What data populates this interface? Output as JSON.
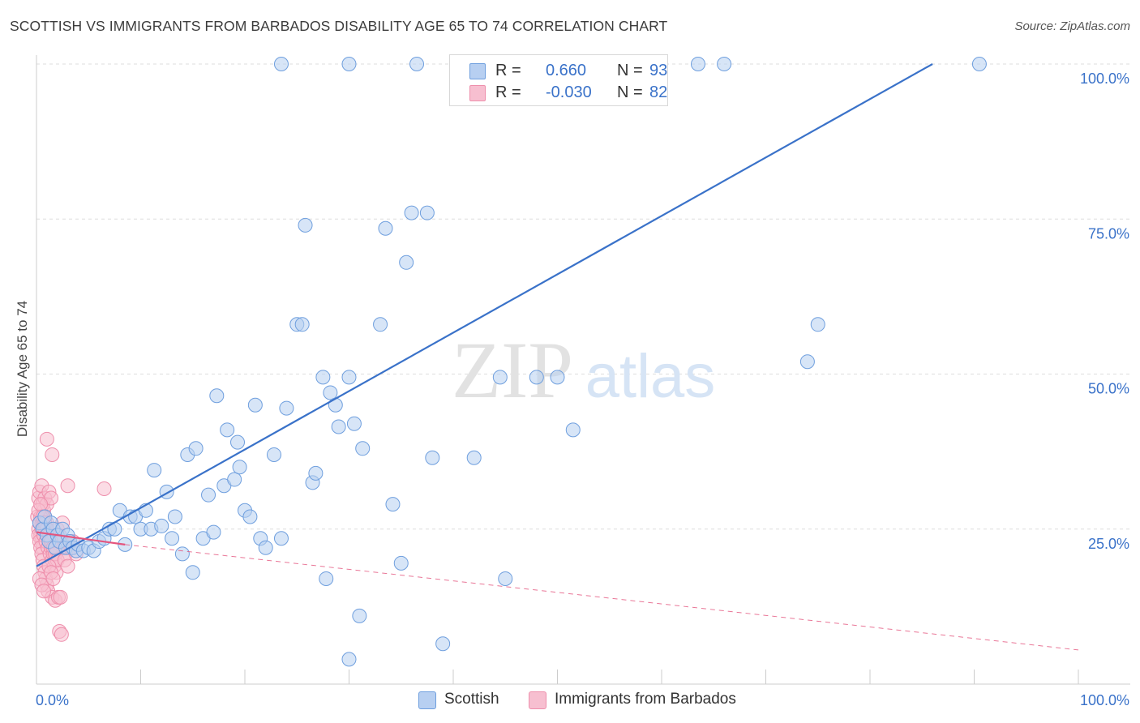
{
  "header": {
    "title": "SCOTTISH VS IMMIGRANTS FROM BARBADOS DISABILITY AGE 65 TO 74 CORRELATION CHART",
    "source": "Source: ZipAtlas.com"
  },
  "watermark": {
    "zip": "ZIP",
    "atlas": "atlas"
  },
  "legend": {
    "rows": [
      {
        "r_label": "R =",
        "r_value": "0.660",
        "n_label": "N =",
        "n_value": "93"
      },
      {
        "r_label": "R =",
        "r_value": "-0.030",
        "n_label": "N =",
        "n_value": "82"
      }
    ]
  },
  "bottom_legend": [
    "Scottish",
    "Immigrants from Barbados"
  ],
  "colors": {
    "blue_fill": "#b7cff1",
    "blue_stroke": "#6f9fde",
    "blue_line": "#3a72c9",
    "pink_fill": "#f7bfd0",
    "pink_stroke": "#ee8fac",
    "pink_line": "#e4557e",
    "axis_label": "#3a72c9",
    "grid": "#dddddd"
  },
  "chart_data": {
    "type": "scatter",
    "title": "SCOTTISH VS IMMIGRANTS FROM BARBADOS DISABILITY AGE 65 TO 74 CORRELATION CHART",
    "xlabel": "",
    "ylabel": "Disability Age 65 to 74",
    "xlim": [
      0,
      100
    ],
    "ylim": [
      0,
      102
    ],
    "x_tick_labels": [
      "0.0%",
      "100.0%"
    ],
    "y_ticks": [
      25,
      50,
      75,
      100
    ],
    "y_tick_labels": [
      "25.0%",
      "50.0%",
      "75.0%",
      "100.0%"
    ],
    "grid": "horizontal dashed",
    "legend_position": "top-center",
    "series": [
      {
        "name": "Scottish",
        "r": 0.66,
        "n": 93,
        "trend": {
          "x": [
            0,
            86
          ],
          "y": [
            19,
            100
          ]
        },
        "points": [
          [
            0.3,
            26
          ],
          [
            0.6,
            25
          ],
          [
            0.8,
            27
          ],
          [
            1.0,
            24
          ],
          [
            1.2,
            23
          ],
          [
            1.4,
            26
          ],
          [
            1.6,
            25
          ],
          [
            1.8,
            22
          ],
          [
            2.0,
            24
          ],
          [
            2.2,
            23
          ],
          [
            2.5,
            25
          ],
          [
            2.8,
            22
          ],
          [
            3.0,
            24
          ],
          [
            3.2,
            23
          ],
          [
            3.5,
            22
          ],
          [
            3.8,
            21.5
          ],
          [
            4.0,
            22.5
          ],
          [
            4.5,
            21.5
          ],
          [
            5.0,
            22
          ],
          [
            5.5,
            21.5
          ],
          [
            6.0,
            23
          ],
          [
            6.5,
            23.5
          ],
          [
            7.0,
            25
          ],
          [
            7.5,
            25
          ],
          [
            8.0,
            28
          ],
          [
            8.5,
            22.5
          ],
          [
            9.0,
            27
          ],
          [
            9.5,
            27
          ],
          [
            10.0,
            25
          ],
          [
            10.5,
            28
          ],
          [
            11.0,
            25
          ],
          [
            11.3,
            34.5
          ],
          [
            12.0,
            25.5
          ],
          [
            12.5,
            31
          ],
          [
            13.0,
            23.5
          ],
          [
            13.3,
            27
          ],
          [
            14.0,
            21
          ],
          [
            14.5,
            37
          ],
          [
            15.0,
            18
          ],
          [
            15.3,
            38
          ],
          [
            16.0,
            23.5
          ],
          [
            16.5,
            30.5
          ],
          [
            17.0,
            24.5
          ],
          [
            17.3,
            46.5
          ],
          [
            18.0,
            32
          ],
          [
            18.3,
            41
          ],
          [
            19.0,
            33
          ],
          [
            19.3,
            39
          ],
          [
            19.5,
            35
          ],
          [
            20.0,
            28
          ],
          [
            20.5,
            27
          ],
          [
            21.0,
            45
          ],
          [
            21.5,
            23.5
          ],
          [
            22.0,
            22
          ],
          [
            22.8,
            37
          ],
          [
            23.5,
            23.5
          ],
          [
            24.0,
            44.5
          ],
          [
            25.0,
            58
          ],
          [
            25.5,
            58
          ],
          [
            25.8,
            74
          ],
          [
            26.5,
            32.5
          ],
          [
            26.8,
            34
          ],
          [
            27.5,
            49.5
          ],
          [
            27.8,
            17
          ],
          [
            28.2,
            47
          ],
          [
            28.7,
            45
          ],
          [
            29.0,
            41.5
          ],
          [
            30.0,
            49.5
          ],
          [
            30.5,
            42
          ],
          [
            31.0,
            11
          ],
          [
            31.3,
            38
          ],
          [
            33.0,
            58
          ],
          [
            33.5,
            73.5
          ],
          [
            34.2,
            29
          ],
          [
            35.0,
            19.5
          ],
          [
            35.5,
            68
          ],
          [
            36.0,
            76
          ],
          [
            37.5,
            76
          ],
          [
            38.0,
            36.5
          ],
          [
            39.0,
            6.5
          ],
          [
            30.0,
            4
          ],
          [
            42.0,
            36.5
          ],
          [
            44.5,
            49.5
          ],
          [
            45.0,
            17
          ],
          [
            48.0,
            49.5
          ],
          [
            50.0,
            49.5
          ],
          [
            51.5,
            41
          ],
          [
            74.0,
            52
          ],
          [
            75.0,
            58
          ],
          [
            23.5,
            100
          ],
          [
            30.0,
            100
          ],
          [
            36.5,
            100
          ],
          [
            46.5,
            100
          ],
          [
            63.5,
            100
          ],
          [
            66.0,
            100
          ],
          [
            90.5,
            100
          ]
        ]
      },
      {
        "name": "Immigrants from Barbados",
        "r": -0.03,
        "n": 82,
        "trend": {
          "x": [
            0,
            8.5
          ],
          "y": [
            24.5,
            22.5
          ]
        },
        "trend_dashed": {
          "x": [
            8.5,
            100
          ],
          "y": [
            22.5,
            5.5
          ]
        },
        "points": [
          [
            0.1,
            27
          ],
          [
            0.2,
            25
          ],
          [
            0.3,
            26
          ],
          [
            0.4,
            24
          ],
          [
            0.5,
            23
          ],
          [
            0.6,
            22
          ],
          [
            0.7,
            28
          ],
          [
            0.8,
            27
          ],
          [
            0.9,
            25
          ],
          [
            1.0,
            26
          ],
          [
            0.2,
            24
          ],
          [
            0.3,
            23
          ],
          [
            0.4,
            22
          ],
          [
            0.5,
            21
          ],
          [
            0.6,
            20
          ],
          [
            0.7,
            19
          ],
          [
            0.8,
            18
          ],
          [
            0.9,
            17
          ],
          [
            1.0,
            16
          ],
          [
            1.1,
            15
          ],
          [
            0.2,
            30
          ],
          [
            0.3,
            31
          ],
          [
            0.5,
            32
          ],
          [
            0.6,
            29
          ],
          [
            0.8,
            30
          ],
          [
            1.0,
            29
          ],
          [
            1.2,
            31
          ],
          [
            1.4,
            30
          ],
          [
            0.3,
            26
          ],
          [
            0.5,
            25
          ],
          [
            0.7,
            24
          ],
          [
            0.9,
            23
          ],
          [
            1.1,
            22
          ],
          [
            1.3,
            21
          ],
          [
            1.5,
            20
          ],
          [
            1.7,
            19
          ],
          [
            1.9,
            18
          ],
          [
            0.4,
            27
          ],
          [
            0.6,
            26
          ],
          [
            0.8,
            25
          ],
          [
            1.0,
            24
          ],
          [
            1.2,
            23
          ],
          [
            1.4,
            22
          ],
          [
            1.6,
            21
          ],
          [
            1.8,
            20
          ],
          [
            2.0,
            25
          ],
          [
            2.2,
            24
          ],
          [
            2.4,
            23
          ],
          [
            2.6,
            22
          ],
          [
            2.8,
            21
          ],
          [
            1.0,
            39.5
          ],
          [
            1.5,
            37
          ],
          [
            3.0,
            32
          ],
          [
            6.5,
            31.5
          ],
          [
            1.5,
            14
          ],
          [
            1.8,
            13.5
          ],
          [
            2.1,
            14
          ],
          [
            2.3,
            14
          ],
          [
            2.2,
            8.5
          ],
          [
            2.4,
            8
          ],
          [
            0.2,
            28
          ],
          [
            0.4,
            29
          ],
          [
            0.6,
            27
          ],
          [
            0.8,
            26
          ],
          [
            1.0,
            25
          ],
          [
            1.2,
            24
          ],
          [
            1.4,
            23
          ],
          [
            1.6,
            22
          ],
          [
            1.8,
            21
          ],
          [
            2.0,
            20
          ],
          [
            0.3,
            17
          ],
          [
            0.5,
            16
          ],
          [
            0.7,
            15
          ],
          [
            1.2,
            19
          ],
          [
            1.4,
            18
          ],
          [
            1.6,
            17
          ],
          [
            2.5,
            26
          ],
          [
            2.7,
            20
          ],
          [
            3.0,
            19
          ],
          [
            3.3,
            22
          ],
          [
            3.5,
            23
          ],
          [
            3.8,
            21
          ]
        ]
      }
    ]
  }
}
